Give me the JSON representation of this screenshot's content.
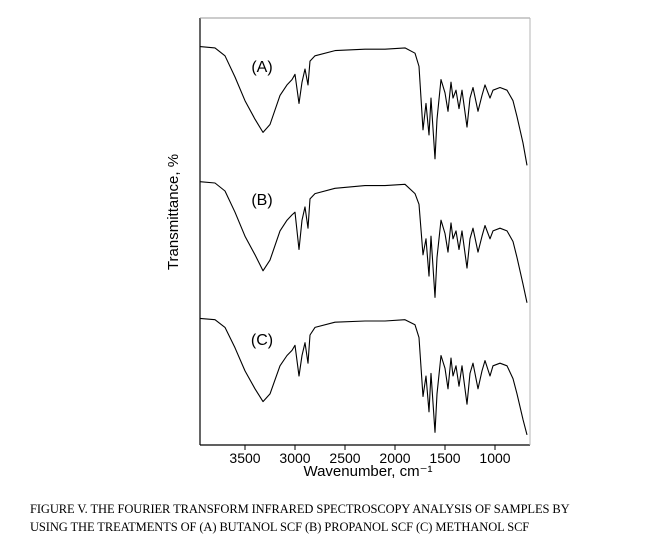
{
  "chart_data": {
    "type": "line",
    "ylabel": "Transmittance, %",
    "xlabel": "Wavenumber, cm⁻¹",
    "x_ticks": [
      3500,
      3000,
      2500,
      2000,
      1500,
      1000
    ],
    "xlim": [
      3950,
      650
    ],
    "x_reversed": true,
    "ylim": [
      0,
      100
    ],
    "grid": false,
    "series": [
      {
        "name": "(A)",
        "points": [
          [
            3950,
            95
          ],
          [
            3800,
            94
          ],
          [
            3700,
            88
          ],
          [
            3600,
            72
          ],
          [
            3500,
            54
          ],
          [
            3400,
            40
          ],
          [
            3320,
            30
          ],
          [
            3250,
            36
          ],
          [
            3150,
            58
          ],
          [
            3080,
            66
          ],
          [
            3030,
            70
          ],
          [
            3000,
            74
          ],
          [
            2960,
            52
          ],
          [
            2930,
            68
          ],
          [
            2900,
            78
          ],
          [
            2870,
            66
          ],
          [
            2850,
            84
          ],
          [
            2800,
            88
          ],
          [
            2600,
            92
          ],
          [
            2300,
            93
          ],
          [
            2100,
            93
          ],
          [
            1900,
            94
          ],
          [
            1800,
            90
          ],
          [
            1760,
            80
          ],
          [
            1720,
            32
          ],
          [
            1690,
            52
          ],
          [
            1660,
            28
          ],
          [
            1640,
            56
          ],
          [
            1600,
            10
          ],
          [
            1580,
            40
          ],
          [
            1540,
            70
          ],
          [
            1500,
            60
          ],
          [
            1470,
            46
          ],
          [
            1440,
            68
          ],
          [
            1420,
            56
          ],
          [
            1390,
            62
          ],
          [
            1360,
            48
          ],
          [
            1330,
            62
          ],
          [
            1280,
            34
          ],
          [
            1250,
            56
          ],
          [
            1220,
            64
          ],
          [
            1170,
            46
          ],
          [
            1130,
            58
          ],
          [
            1100,
            66
          ],
          [
            1050,
            56
          ],
          [
            1020,
            62
          ],
          [
            950,
            64
          ],
          [
            880,
            62
          ],
          [
            820,
            54
          ],
          [
            780,
            42
          ],
          [
            720,
            22
          ],
          [
            680,
            5
          ]
        ]
      },
      {
        "name": "(B)",
        "points": [
          [
            3950,
            95
          ],
          [
            3800,
            94
          ],
          [
            3700,
            88
          ],
          [
            3600,
            72
          ],
          [
            3500,
            54
          ],
          [
            3400,
            40
          ],
          [
            3320,
            28
          ],
          [
            3250,
            36
          ],
          [
            3150,
            58
          ],
          [
            3080,
            66
          ],
          [
            3030,
            70
          ],
          [
            3000,
            72
          ],
          [
            2960,
            44
          ],
          [
            2930,
            66
          ],
          [
            2900,
            76
          ],
          [
            2870,
            60
          ],
          [
            2850,
            82
          ],
          [
            2800,
            86
          ],
          [
            2600,
            90
          ],
          [
            2300,
            92
          ],
          [
            2100,
            92
          ],
          [
            1900,
            93
          ],
          [
            1800,
            86
          ],
          [
            1760,
            78
          ],
          [
            1720,
            40
          ],
          [
            1690,
            52
          ],
          [
            1660,
            24
          ],
          [
            1640,
            54
          ],
          [
            1600,
            8
          ],
          [
            1580,
            38
          ],
          [
            1540,
            66
          ],
          [
            1500,
            56
          ],
          [
            1470,
            42
          ],
          [
            1440,
            64
          ],
          [
            1420,
            52
          ],
          [
            1390,
            58
          ],
          [
            1360,
            44
          ],
          [
            1330,
            58
          ],
          [
            1280,
            30
          ],
          [
            1250,
            52
          ],
          [
            1220,
            60
          ],
          [
            1170,
            42
          ],
          [
            1130,
            54
          ],
          [
            1100,
            62
          ],
          [
            1050,
            52
          ],
          [
            1020,
            58
          ],
          [
            950,
            60
          ],
          [
            880,
            58
          ],
          [
            820,
            50
          ],
          [
            780,
            38
          ],
          [
            720,
            18
          ],
          [
            680,
            4
          ]
        ]
      },
      {
        "name": "(C)",
        "points": [
          [
            3950,
            95
          ],
          [
            3800,
            94
          ],
          [
            3700,
            88
          ],
          [
            3600,
            72
          ],
          [
            3500,
            54
          ],
          [
            3400,
            40
          ],
          [
            3320,
            30
          ],
          [
            3250,
            36
          ],
          [
            3150,
            58
          ],
          [
            3080,
            66
          ],
          [
            3030,
            70
          ],
          [
            3000,
            74
          ],
          [
            2960,
            50
          ],
          [
            2930,
            66
          ],
          [
            2900,
            76
          ],
          [
            2870,
            60
          ],
          [
            2850,
            82
          ],
          [
            2800,
            88
          ],
          [
            2600,
            92
          ],
          [
            2300,
            93
          ],
          [
            2100,
            93
          ],
          [
            1900,
            94
          ],
          [
            1800,
            90
          ],
          [
            1760,
            80
          ],
          [
            1720,
            34
          ],
          [
            1690,
            50
          ],
          [
            1660,
            22
          ],
          [
            1640,
            52
          ],
          [
            1600,
            6
          ],
          [
            1580,
            36
          ],
          [
            1540,
            66
          ],
          [
            1500,
            56
          ],
          [
            1470,
            40
          ],
          [
            1440,
            64
          ],
          [
            1420,
            50
          ],
          [
            1390,
            58
          ],
          [
            1360,
            42
          ],
          [
            1330,
            58
          ],
          [
            1280,
            28
          ],
          [
            1250,
            52
          ],
          [
            1220,
            60
          ],
          [
            1170,
            40
          ],
          [
            1130,
            54
          ],
          [
            1100,
            62
          ],
          [
            1050,
            50
          ],
          [
            1020,
            58
          ],
          [
            950,
            60
          ],
          [
            880,
            58
          ],
          [
            820,
            48
          ],
          [
            780,
            36
          ],
          [
            720,
            16
          ],
          [
            680,
            4
          ]
        ]
      }
    ]
  },
  "caption": {
    "line1": "FIGURE V. THE FOURIER TRANSFORM INFRARED SPECTROSCOPY ANALYSIS OF SAMPLES BY",
    "line2": "USING THE TREATMENTS OF (A) BUTANOL SCF (B) PROPANOL SCF (C) METHANOL SCF"
  },
  "colors": {
    "line": "#000000",
    "frame": "#000000"
  }
}
